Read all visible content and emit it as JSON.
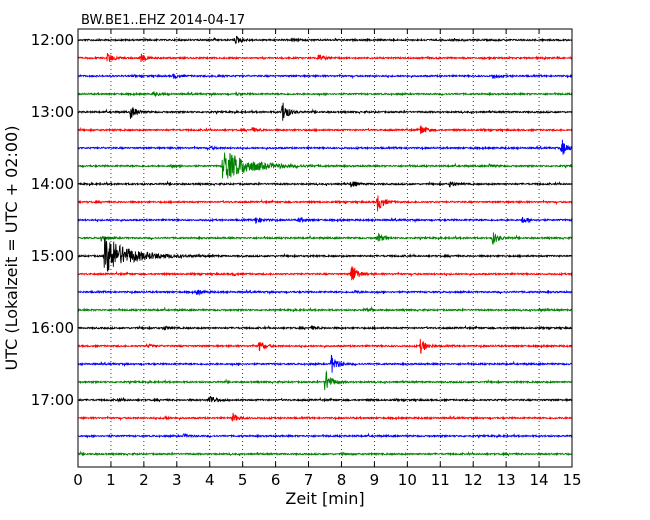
{
  "chart_data": {
    "type": "line",
    "title": "BW.BE1..EHZ 2014-04-17",
    "xlabel": "Zeit  [min]",
    "ylabel": "UTC (Lokalzeit = UTC + 02:00)",
    "xlim": [
      0,
      15
    ],
    "x_ticks": [
      "0",
      "1",
      "2",
      "3",
      "4",
      "5",
      "6",
      "7",
      "8",
      "9",
      "10",
      "11",
      "12",
      "13",
      "14",
      "15"
    ],
    "y_ticks": [
      "12:00",
      "13:00",
      "14:00",
      "15:00",
      "16:00",
      "17:00"
    ],
    "grid": "vertical dotted",
    "colors": [
      "#000000",
      "#ff0000",
      "#0000ff",
      "#008000"
    ],
    "rows_per_hour": 4,
    "row_minutes": 15,
    "series": [
      {
        "start": "12:00",
        "events": [
          {
            "t": 4.8,
            "amp": 0.35
          },
          {
            "t": 6.5,
            "amp": 0.12
          }
        ]
      },
      {
        "start": "12:15",
        "events": [
          {
            "t": 0.9,
            "amp": 0.45
          },
          {
            "t": 1.9,
            "amp": 0.35
          },
          {
            "t": 7.3,
            "amp": 0.3
          }
        ]
      },
      {
        "start": "12:30",
        "events": [
          {
            "t": 2.9,
            "amp": 0.2
          },
          {
            "t": 4.2,
            "amp": 0.12
          },
          {
            "t": 12.6,
            "amp": 0.25
          }
        ]
      },
      {
        "start": "12:45",
        "events": [
          {
            "t": 2.3,
            "amp": 0.2
          },
          {
            "t": 4.8,
            "amp": 0.1
          }
        ]
      },
      {
        "start": "13:00",
        "events": [
          {
            "t": 1.6,
            "amp": 0.6
          },
          {
            "t": 6.2,
            "amp": 1.0
          }
        ]
      },
      {
        "start": "13:15",
        "events": [
          {
            "t": 5.3,
            "amp": 0.2
          },
          {
            "t": 10.4,
            "amp": 0.45
          }
        ]
      },
      {
        "start": "13:30",
        "events": [
          {
            "t": 14.7,
            "amp": 0.7
          },
          {
            "t": 4.0,
            "amp": 0.12
          }
        ]
      },
      {
        "start": "13:45",
        "events": [
          {
            "t": 4.4,
            "amp": 1.35
          },
          {
            "t": 2.8,
            "amp": 0.15
          },
          {
            "t": 12.5,
            "amp": 0.12
          }
        ]
      },
      {
        "start": "14:00",
        "events": [
          {
            "t": 8.3,
            "amp": 0.3
          },
          {
            "t": 11.3,
            "amp": 0.25
          }
        ]
      },
      {
        "start": "14:15",
        "events": [
          {
            "t": 9.1,
            "amp": 0.8
          }
        ]
      },
      {
        "start": "14:30",
        "events": [
          {
            "t": 5.4,
            "amp": 0.3
          },
          {
            "t": 6.7,
            "amp": 0.2
          },
          {
            "t": 13.5,
            "amp": 0.3
          }
        ]
      },
      {
        "start": "14:45",
        "events": [
          {
            "t": 0.7,
            "amp": 0.3
          },
          {
            "t": 9.1,
            "amp": 0.4
          },
          {
            "t": 12.6,
            "amp": 0.55
          }
        ]
      },
      {
        "start": "15:00",
        "events": [
          {
            "t": 0.8,
            "amp": 1.6
          }
        ]
      },
      {
        "start": "15:15",
        "events": [
          {
            "t": 8.3,
            "amp": 1.0
          },
          {
            "t": 4.7,
            "amp": 0.12
          }
        ]
      },
      {
        "start": "15:30",
        "events": [
          {
            "t": 3.6,
            "amp": 0.25
          },
          {
            "t": 8.4,
            "amp": 0.12
          }
        ]
      },
      {
        "start": "15:45",
        "events": [
          {
            "t": 8.7,
            "amp": 0.15
          },
          {
            "t": 14.0,
            "amp": 0.12
          }
        ]
      },
      {
        "start": "16:00",
        "events": [
          {
            "t": 2.6,
            "amp": 0.18
          },
          {
            "t": 7.1,
            "amp": 0.15
          }
        ]
      },
      {
        "start": "16:15",
        "events": [
          {
            "t": 5.5,
            "amp": 0.45
          },
          {
            "t": 10.4,
            "amp": 0.65
          },
          {
            "t": 2.1,
            "amp": 0.15
          }
        ]
      },
      {
        "start": "16:30",
        "events": [
          {
            "t": 7.7,
            "amp": 0.85
          }
        ]
      },
      {
        "start": "16:45",
        "events": [
          {
            "t": 7.5,
            "amp": 1.1
          }
        ]
      },
      {
        "start": "17:00",
        "events": [
          {
            "t": 4.0,
            "amp": 0.45
          },
          {
            "t": 1.2,
            "amp": 0.12
          }
        ]
      },
      {
        "start": "17:15",
        "events": [
          {
            "t": 4.7,
            "amp": 0.4
          },
          {
            "t": 2.6,
            "amp": 0.1
          }
        ]
      },
      {
        "start": "17:30",
        "events": [
          {
            "t": 3.2,
            "amp": 0.12
          }
        ]
      },
      {
        "start": "17:45",
        "events": [
          {
            "t": 8.0,
            "amp": 0.1
          }
        ]
      }
    ]
  }
}
